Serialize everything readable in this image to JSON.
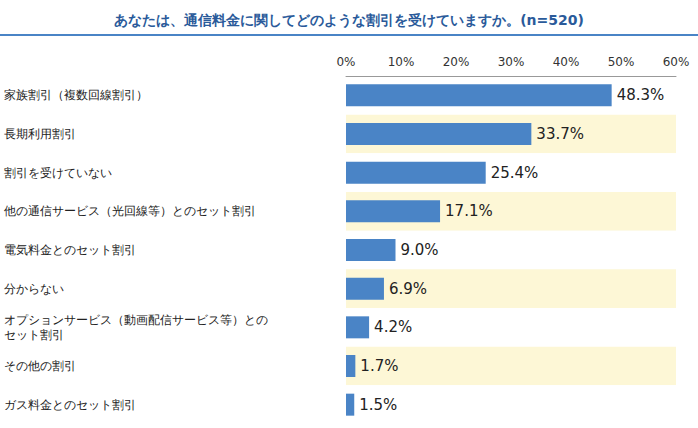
{
  "chart_data": {
    "type": "bar",
    "orientation": "horizontal",
    "title": "あなたは、通信料金に関してどのような割引を受けていますか。(n=520)",
    "categories": [
      "家族割引（複数回線割引）",
      "長期利用割引",
      "割引を受けていない",
      "他の通信サービス（光回線等）とのセット割引",
      "電気料金とのセット割引",
      "分からない",
      "オプションサービス（動画配信サービス等）との\nセット割引",
      "その他の割引",
      "ガス料金とのセット割引"
    ],
    "values": [
      48.3,
      33.7,
      25.4,
      17.1,
      9.0,
      6.9,
      4.2,
      1.7,
      1.5
    ],
    "value_labels": [
      "48.3%",
      "33.7%",
      "25.4%",
      "17.1%",
      "9.0%",
      "6.9%",
      "4.2%",
      "1.7%",
      "1.5%"
    ],
    "color": "#4a84c6",
    "xlim": [
      0,
      60
    ],
    "xticks": [
      {
        "value": 0,
        "label": "0%"
      },
      {
        "value": 10,
        "label": "10%"
      },
      {
        "value": 20,
        "label": "20%"
      },
      {
        "value": 30,
        "label": "30%"
      },
      {
        "value": 40,
        "label": "40%"
      },
      {
        "value": 50,
        "label": "50%"
      },
      {
        "value": 60,
        "label": "60%"
      }
    ],
    "grid": false,
    "data_labels": true
  }
}
